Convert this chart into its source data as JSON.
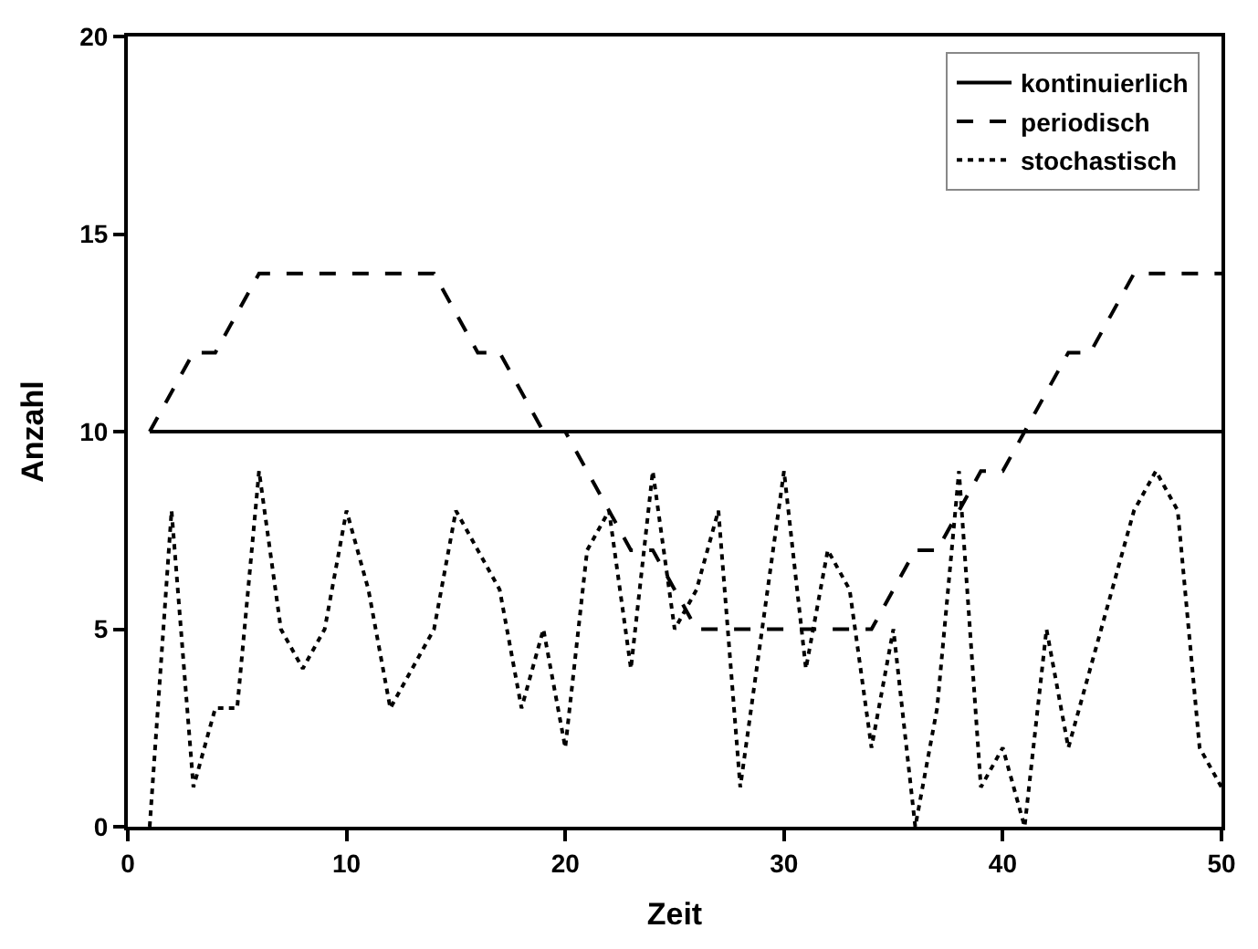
{
  "chart_data": {
    "type": "line",
    "xlabel": "Zeit",
    "ylabel": "Anzahl",
    "x": [
      1,
      2,
      3,
      4,
      5,
      6,
      7,
      8,
      9,
      10,
      11,
      12,
      13,
      14,
      15,
      16,
      17,
      18,
      19,
      20,
      21,
      22,
      23,
      24,
      25,
      26,
      27,
      28,
      29,
      30,
      31,
      32,
      33,
      34,
      35,
      36,
      37,
      38,
      39,
      40,
      41,
      42,
      43,
      44,
      45,
      46,
      47,
      48,
      49,
      50
    ],
    "series": [
      {
        "name": "kontinuierlich",
        "color": "#000000",
        "line_style": "solid",
        "values": [
          10,
          10,
          10,
          10,
          10,
          10,
          10,
          10,
          10,
          10,
          10,
          10,
          10,
          10,
          10,
          10,
          10,
          10,
          10,
          10,
          10,
          10,
          10,
          10,
          10,
          10,
          10,
          10,
          10,
          10,
          10,
          10,
          10,
          10,
          10,
          10,
          10,
          10,
          10,
          10,
          10,
          10,
          10,
          10,
          10,
          10,
          10,
          10,
          10,
          10
        ]
      },
      {
        "name": "periodisch",
        "color": "#000000",
        "line_style": "dashed",
        "values": [
          10,
          11,
          12,
          12,
          13,
          14,
          14,
          14,
          14,
          14,
          14,
          14,
          14,
          14,
          13,
          12,
          12,
          11,
          10,
          10,
          9,
          8,
          7,
          7,
          6,
          5,
          5,
          5,
          5,
          5,
          5,
          5,
          5,
          5,
          6,
          7,
          7,
          8,
          9,
          9,
          10,
          11,
          12,
          12,
          13,
          14,
          14,
          14,
          14,
          14
        ]
      },
      {
        "name": "stochastisch",
        "color": "#000000",
        "line_style": "dotted",
        "values": [
          0,
          8,
          1,
          3,
          3,
          9,
          5,
          4,
          5,
          8,
          6,
          3,
          4,
          5,
          8,
          7,
          6,
          3,
          5,
          2,
          7,
          8,
          4,
          9,
          5,
          6,
          8,
          1,
          5,
          9,
          4,
          7,
          6,
          2,
          5,
          0,
          3,
          9,
          1,
          2,
          0,
          5,
          2,
          4,
          6,
          8,
          9,
          8,
          2,
          1
        ]
      }
    ],
    "xlim": [
      0,
      50
    ],
    "xticks": [
      0,
      10,
      20,
      30,
      40,
      50
    ],
    "ylim": [
      0,
      20
    ],
    "yticks": [
      0,
      5,
      10,
      15,
      20
    ],
    "legend": "top right",
    "marker": "none"
  }
}
